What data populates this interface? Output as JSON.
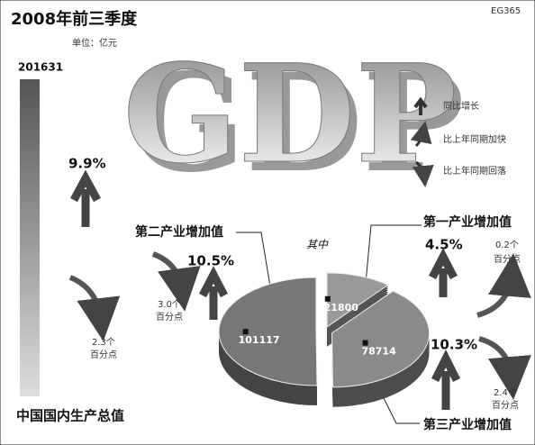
{
  "chart_data": {
    "type": "pie",
    "title": "2008年前三季度",
    "subtitle": "单位：亿元",
    "source": "EG365",
    "watermark": "GDP",
    "legend": [
      "同比增长",
      "比上年同期加快",
      "比上年同期回落"
    ],
    "total": {
      "label": "中国国内生产总值",
      "value": 201631,
      "growth": "9.9%",
      "change": [
        "2.3个",
        "百分点"
      ]
    },
    "center_label": "其中",
    "categories": [
      "第一产业增加值",
      "第二产业增加值",
      "第三产业增加值"
    ],
    "values": [
      21800,
      101117,
      78714
    ],
    "growth": [
      "4.5%",
      "10.5%",
      "10.3%"
    ],
    "change": [
      [
        "0.2个",
        "百分点"
      ],
      [
        "3.0个",
        "百分点"
      ],
      [
        "2.4个",
        "百分点"
      ]
    ]
  }
}
